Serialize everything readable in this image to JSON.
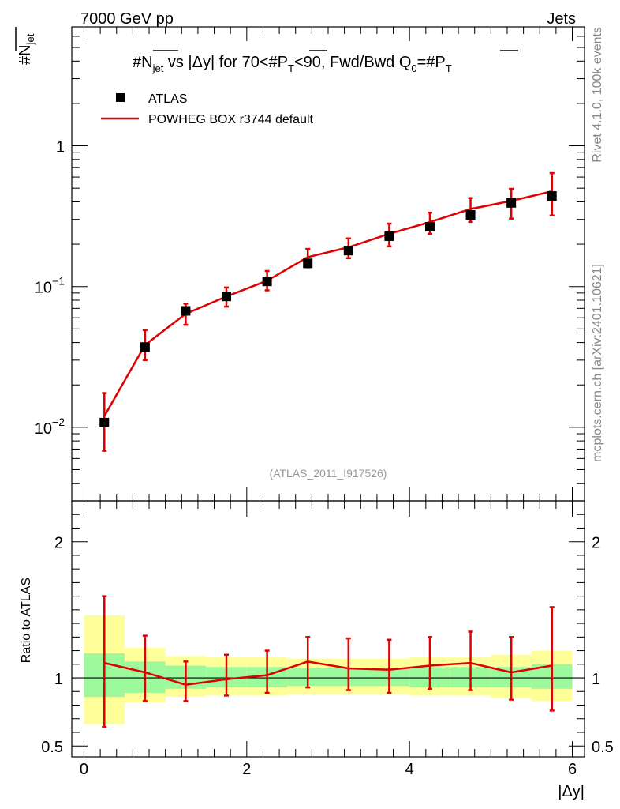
{
  "header": {
    "left": "7000 GeV pp",
    "right": "Jets"
  },
  "side_labels": {
    "top": "Rivet 4.1.0,  100k events",
    "bottom": "mcplots.cern.ch [arXiv:2401.10621]"
  },
  "chart_data": [
    {
      "type": "scatter",
      "panel": "main",
      "title_parts": {
        "n": "#N",
        "jet": "jet",
        "vs": " vs |Δy| for 70<#P",
        "t": "T",
        "mid": "<90, Fwd/Bwd Q",
        "zero": "0",
        "eq": "=#P",
        "t2": "T"
      },
      "ylabel": {
        "main": "#N",
        "sub": "jet"
      },
      "watermark": "(ATLAS_2011_I917526)",
      "yscale": "log",
      "xlim": [
        -0.15,
        6.15
      ],
      "ylim": [
        0.003,
        7
      ],
      "yticks": [
        {
          "value": 1,
          "base": "1",
          "exp": ""
        },
        {
          "value": 0.1,
          "base": "10",
          "exp": "−1"
        },
        {
          "value": 0.01,
          "base": "10",
          "exp": "−2"
        }
      ],
      "legend": {
        "data": "ATLAS",
        "mc": "POWHEG BOX r3744 default",
        "placement": "top-left"
      },
      "x": [
        0.25,
        0.75,
        1.25,
        1.75,
        2.25,
        2.75,
        3.25,
        3.75,
        4.25,
        4.75,
        5.25,
        5.75
      ],
      "atlas": [
        0.0108,
        0.0372,
        0.0672,
        0.0851,
        0.1088,
        0.1462,
        0.18,
        0.228,
        0.266,
        0.323,
        0.393,
        0.44
      ],
      "powheg": [
        0.012,
        0.0385,
        0.064,
        0.085,
        0.11,
        0.162,
        0.19,
        0.237,
        0.287,
        0.356,
        0.406,
        0.475
      ],
      "powheg_err_low": [
        0.0068,
        0.03,
        0.0535,
        0.072,
        0.094,
        0.137,
        0.159,
        0.193,
        0.237,
        0.288,
        0.304,
        0.32
      ],
      "powheg_err_high": [
        0.0175,
        0.049,
        0.0755,
        0.0985,
        0.129,
        0.185,
        0.22,
        0.28,
        0.335,
        0.425,
        0.495,
        0.64
      ]
    },
    {
      "type": "line",
      "panel": "ratio",
      "ylabel": "Ratio to ATLAS",
      "xlabel": "|Δy|",
      "xlim": [
        -0.15,
        6.15
      ],
      "ylim": [
        0.42,
        2.3
      ],
      "yticks": [
        {
          "value": 0.5,
          "label": "0.5"
        },
        {
          "value": 1,
          "label": "1"
        },
        {
          "value": 2,
          "label": "2"
        }
      ],
      "xticks": [
        {
          "value": 0,
          "label": "0"
        },
        {
          "value": 2,
          "label": "2"
        },
        {
          "value": 4,
          "label": "4"
        },
        {
          "value": 6,
          "label": "6"
        }
      ],
      "x_edges": [
        0,
        0.5,
        1.0,
        1.5,
        2.0,
        2.5,
        3.0,
        3.5,
        4.0,
        4.5,
        5.0,
        5.5,
        6.0
      ],
      "band_green": [
        [
          0.86,
          1.18
        ],
        [
          0.89,
          1.12
        ],
        [
          0.92,
          1.09
        ],
        [
          0.93,
          1.08
        ],
        [
          0.93,
          1.08
        ],
        [
          0.94,
          1.07
        ],
        [
          0.94,
          1.07
        ],
        [
          0.94,
          1.07
        ],
        [
          0.93,
          1.08
        ],
        [
          0.93,
          1.08
        ],
        [
          0.93,
          1.08
        ],
        [
          0.92,
          1.1
        ]
      ],
      "band_yellow": [
        [
          0.66,
          1.46
        ],
        [
          0.82,
          1.22
        ],
        [
          0.86,
          1.16
        ],
        [
          0.87,
          1.15
        ],
        [
          0.87,
          1.15
        ],
        [
          0.88,
          1.14
        ],
        [
          0.88,
          1.14
        ],
        [
          0.88,
          1.14
        ],
        [
          0.87,
          1.15
        ],
        [
          0.87,
          1.15
        ],
        [
          0.85,
          1.17
        ],
        [
          0.83,
          1.2
        ]
      ],
      "x": [
        0.25,
        0.75,
        1.25,
        1.75,
        2.25,
        2.75,
        3.25,
        3.75,
        4.25,
        4.75,
        5.25,
        5.75
      ],
      "ratio": [
        1.11,
        1.04,
        0.95,
        0.99,
        1.02,
        1.12,
        1.07,
        1.06,
        1.09,
        1.11,
        1.04,
        1.09
      ],
      "err_low": [
        0.64,
        0.83,
        0.83,
        0.87,
        0.89,
        0.93,
        0.91,
        0.89,
        0.92,
        0.91,
        0.84,
        0.76
      ],
      "err_high": [
        1.6,
        1.31,
        1.12,
        1.17,
        1.2,
        1.3,
        1.29,
        1.28,
        1.3,
        1.34,
        1.3,
        1.52
      ]
    }
  ]
}
